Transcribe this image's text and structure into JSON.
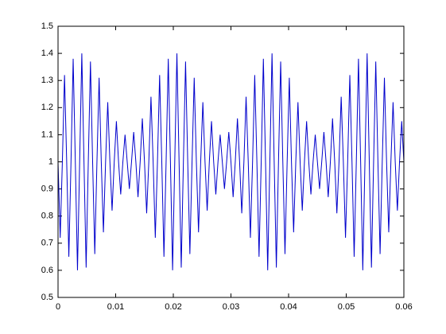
{
  "chart_data": {
    "type": "line",
    "x": [
      0,
      0.000375,
      0.00075,
      0.001125,
      0.0015,
      0.001875,
      0.00225,
      0.002625,
      0.003,
      0.003375,
      0.00375,
      0.004125,
      0.0045,
      0.004875,
      0.00525,
      0.005625,
      0.006,
      0.006375,
      0.00675,
      0.007125,
      0.0075,
      0.007875,
      0.00825,
      0.008625,
      0.009,
      0.009375,
      0.00975,
      0.010125,
      0.0105,
      0.010875,
      0.01125,
      0.011625,
      0.012,
      0.012375,
      0.01275,
      0.013125,
      0.0135,
      0.013875,
      0.01425,
      0.014625,
      0.015,
      0.015375,
      0.01575,
      0.016125,
      0.0165,
      0.016875,
      0.01725,
      0.017625,
      0.018,
      0.018375,
      0.01875,
      0.019125,
      0.0195,
      0.019875,
      0.02025,
      0.020625,
      0.021,
      0.021375,
      0.02175,
      0.022125,
      0.0225,
      0.022875,
      0.02325,
      0.023625,
      0.024,
      0.024375,
      0.02475,
      0.025125,
      0.0255,
      0.025875,
      0.02625,
      0.026625,
      0.027,
      0.027375,
      0.02775,
      0.028125,
      0.0285,
      0.028875,
      0.02925,
      0.029625,
      0.03,
      0.030375,
      0.03075,
      0.031125,
      0.0315,
      0.031875,
      0.03225,
      0.032625,
      0.033,
      0.033375,
      0.03375,
      0.034125,
      0.0345,
      0.034875,
      0.03525,
      0.035625,
      0.036,
      0.036375,
      0.03675,
      0.037125,
      0.0375,
      0.037875,
      0.03825,
      0.038625,
      0.039,
      0.039375,
      0.03975,
      0.040125,
      0.0405,
      0.040875,
      0.04125,
      0.041625,
      0.042,
      0.042375,
      0.04275,
      0.043125,
      0.0435,
      0.043875,
      0.04425,
      0.044625,
      0.045,
      0.045375,
      0.04575,
      0.046125,
      0.0465,
      0.046875,
      0.04725,
      0.047625,
      0.048,
      0.048375,
      0.04875,
      0.049125,
      0.0495,
      0.049875,
      0.05025,
      0.050625,
      0.051,
      0.051375,
      0.05175,
      0.052125,
      0.0525,
      0.052875,
      0.05325,
      0.053625,
      0.054,
      0.054375,
      0.05475,
      0.055125,
      0.0555,
      0.055875,
      0.05625,
      0.056625,
      0.057,
      0.057375,
      0.05775,
      0.058125,
      0.0585,
      0.058875,
      0.05925,
      0.059625,
      0.06
    ],
    "series": [
      {
        "color": "#0000cc",
        "values": [
          1,
          0.72,
          1,
          1.32,
          1,
          0.65,
          1,
          1.38,
          1,
          0.6,
          1,
          1.4,
          1,
          0.61,
          1,
          1.37,
          1,
          0.66,
          1,
          1.31,
          1,
          0.74,
          1,
          1.22,
          1,
          0.82,
          1,
          1.15,
          1,
          0.88,
          1,
          1.1,
          1,
          0.9,
          1,
          1.11,
          1,
          0.87,
          1,
          1.16,
          1,
          0.81,
          1,
          1.24,
          1,
          0.72,
          1,
          1.32,
          1,
          0.65,
          1,
          1.38,
          1,
          0.6,
          1,
          1.4,
          1,
          0.61,
          1,
          1.37,
          1,
          0.66,
          1,
          1.31,
          1,
          0.74,
          1,
          1.22,
          1,
          0.82,
          1,
          1.15,
          1,
          0.88,
          1,
          1.1,
          1,
          0.9,
          1,
          1.11,
          1,
          0.87,
          1,
          1.16,
          1,
          0.81,
          1,
          1.24,
          1,
          0.72,
          1,
          1.32,
          1,
          0.65,
          1,
          1.38,
          1,
          0.6,
          1,
          1.4,
          1,
          0.61,
          1,
          1.37,
          1,
          0.66,
          1,
          1.31,
          1,
          0.74,
          1,
          1.22,
          1,
          0.82,
          1,
          1.15,
          1,
          0.88,
          1,
          1.1,
          1,
          0.9,
          1,
          1.11,
          1,
          0.87,
          1,
          1.16,
          1,
          0.81,
          1,
          1.24,
          1,
          0.72,
          1,
          1.32,
          1,
          0.65,
          1,
          1.38,
          1,
          0.6,
          1,
          1.4,
          1,
          0.61,
          1,
          1.37,
          1,
          0.66,
          1,
          1.31,
          1,
          0.74,
          1,
          1.22,
          1,
          0.82,
          1,
          1.15,
          1
        ]
      }
    ],
    "xlim": [
      0,
      0.06
    ],
    "xticks": [
      0,
      0.01,
      0.02,
      0.03,
      0.04,
      0.05,
      0.06
    ],
    "ylim": [
      0.5,
      1.5
    ],
    "yticks": [
      0.5,
      0.6,
      0.7,
      0.8,
      0.9,
      1,
      1.1,
      1.2,
      1.3,
      1.4,
      1.5
    ]
  }
}
